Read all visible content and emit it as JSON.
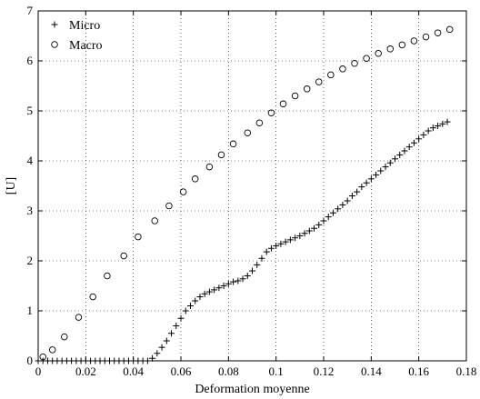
{
  "chart_data": {
    "type": "scatter",
    "xlabel": "Deformation moyenne",
    "ylabel": "[U]",
    "xlim": [
      0,
      0.18
    ],
    "ylim": [
      0,
      7
    ],
    "x_ticks": [
      "0",
      "0.02",
      "0.04",
      "0.06",
      "0.08",
      "0.1",
      "0.12",
      "0.14",
      "0.16",
      "0.18"
    ],
    "y_ticks": [
      "0",
      "1",
      "2",
      "3",
      "4",
      "5",
      "6",
      "7"
    ],
    "x_tick_values": [
      0,
      0.02,
      0.04,
      0.06,
      0.08,
      0.1,
      0.12,
      0.14,
      0.16,
      0.18
    ],
    "y_tick_values": [
      0,
      1,
      2,
      3,
      4,
      5,
      6,
      7
    ],
    "grid": true,
    "legend_position": "top-left",
    "series": [
      {
        "name": "Micro",
        "marker": "plus",
        "color": "#000000",
        "x": [
          0.0,
          0.002,
          0.004,
          0.006,
          0.008,
          0.01,
          0.012,
          0.014,
          0.016,
          0.018,
          0.02,
          0.022,
          0.024,
          0.026,
          0.028,
          0.03,
          0.032,
          0.034,
          0.036,
          0.038,
          0.04,
          0.042,
          0.044,
          0.046,
          0.048,
          0.05,
          0.052,
          0.054,
          0.056,
          0.058,
          0.06,
          0.062,
          0.064,
          0.066,
          0.068,
          0.07,
          0.072,
          0.074,
          0.076,
          0.078,
          0.08,
          0.082,
          0.084,
          0.086,
          0.088,
          0.09,
          0.092,
          0.094,
          0.096,
          0.098,
          0.1,
          0.102,
          0.104,
          0.106,
          0.108,
          0.11,
          0.112,
          0.114,
          0.116,
          0.118,
          0.12,
          0.122,
          0.124,
          0.126,
          0.128,
          0.13,
          0.132,
          0.134,
          0.136,
          0.138,
          0.14,
          0.142,
          0.144,
          0.146,
          0.148,
          0.15,
          0.152,
          0.154,
          0.156,
          0.158,
          0.16,
          0.162,
          0.164,
          0.166,
          0.168,
          0.17,
          0.172
        ],
        "y": [
          0,
          0,
          0,
          0,
          0,
          0,
          0,
          0,
          0,
          0,
          0,
          0,
          0,
          0,
          0,
          0,
          0,
          0,
          0,
          0,
          0,
          0,
          0,
          0,
          0.05,
          0.15,
          0.27,
          0.4,
          0.55,
          0.7,
          0.85,
          1.0,
          1.1,
          1.2,
          1.28,
          1.34,
          1.38,
          1.42,
          1.46,
          1.5,
          1.54,
          1.58,
          1.6,
          1.64,
          1.7,
          1.8,
          1.92,
          2.05,
          2.18,
          2.25,
          2.3,
          2.34,
          2.38,
          2.42,
          2.46,
          2.5,
          2.55,
          2.6,
          2.65,
          2.72,
          2.8,
          2.88,
          2.96,
          3.04,
          3.12,
          3.2,
          3.3,
          3.38,
          3.48,
          3.56,
          3.64,
          3.72,
          3.8,
          3.88,
          3.96,
          4.04,
          4.12,
          4.2,
          4.28,
          4.36,
          4.44,
          4.52,
          4.6,
          4.66,
          4.7,
          4.74,
          4.78
        ]
      },
      {
        "name": "Macro",
        "marker": "circle",
        "color": "#000000",
        "x": [
          0.002,
          0.006,
          0.011,
          0.017,
          0.023,
          0.029,
          0.036,
          0.042,
          0.049,
          0.055,
          0.061,
          0.066,
          0.072,
          0.077,
          0.082,
          0.088,
          0.093,
          0.098,
          0.103,
          0.108,
          0.113,
          0.118,
          0.123,
          0.128,
          0.133,
          0.138,
          0.143,
          0.148,
          0.153,
          0.158,
          0.163,
          0.168,
          0.173
        ],
        "y": [
          0.08,
          0.22,
          0.48,
          0.87,
          1.28,
          1.7,
          2.1,
          2.48,
          2.8,
          3.1,
          3.38,
          3.64,
          3.88,
          4.12,
          4.34,
          4.56,
          4.76,
          4.96,
          5.14,
          5.3,
          5.44,
          5.58,
          5.72,
          5.84,
          5.95,
          6.05,
          6.15,
          6.24,
          6.32,
          6.4,
          6.48,
          6.56,
          6.63
        ]
      }
    ]
  }
}
